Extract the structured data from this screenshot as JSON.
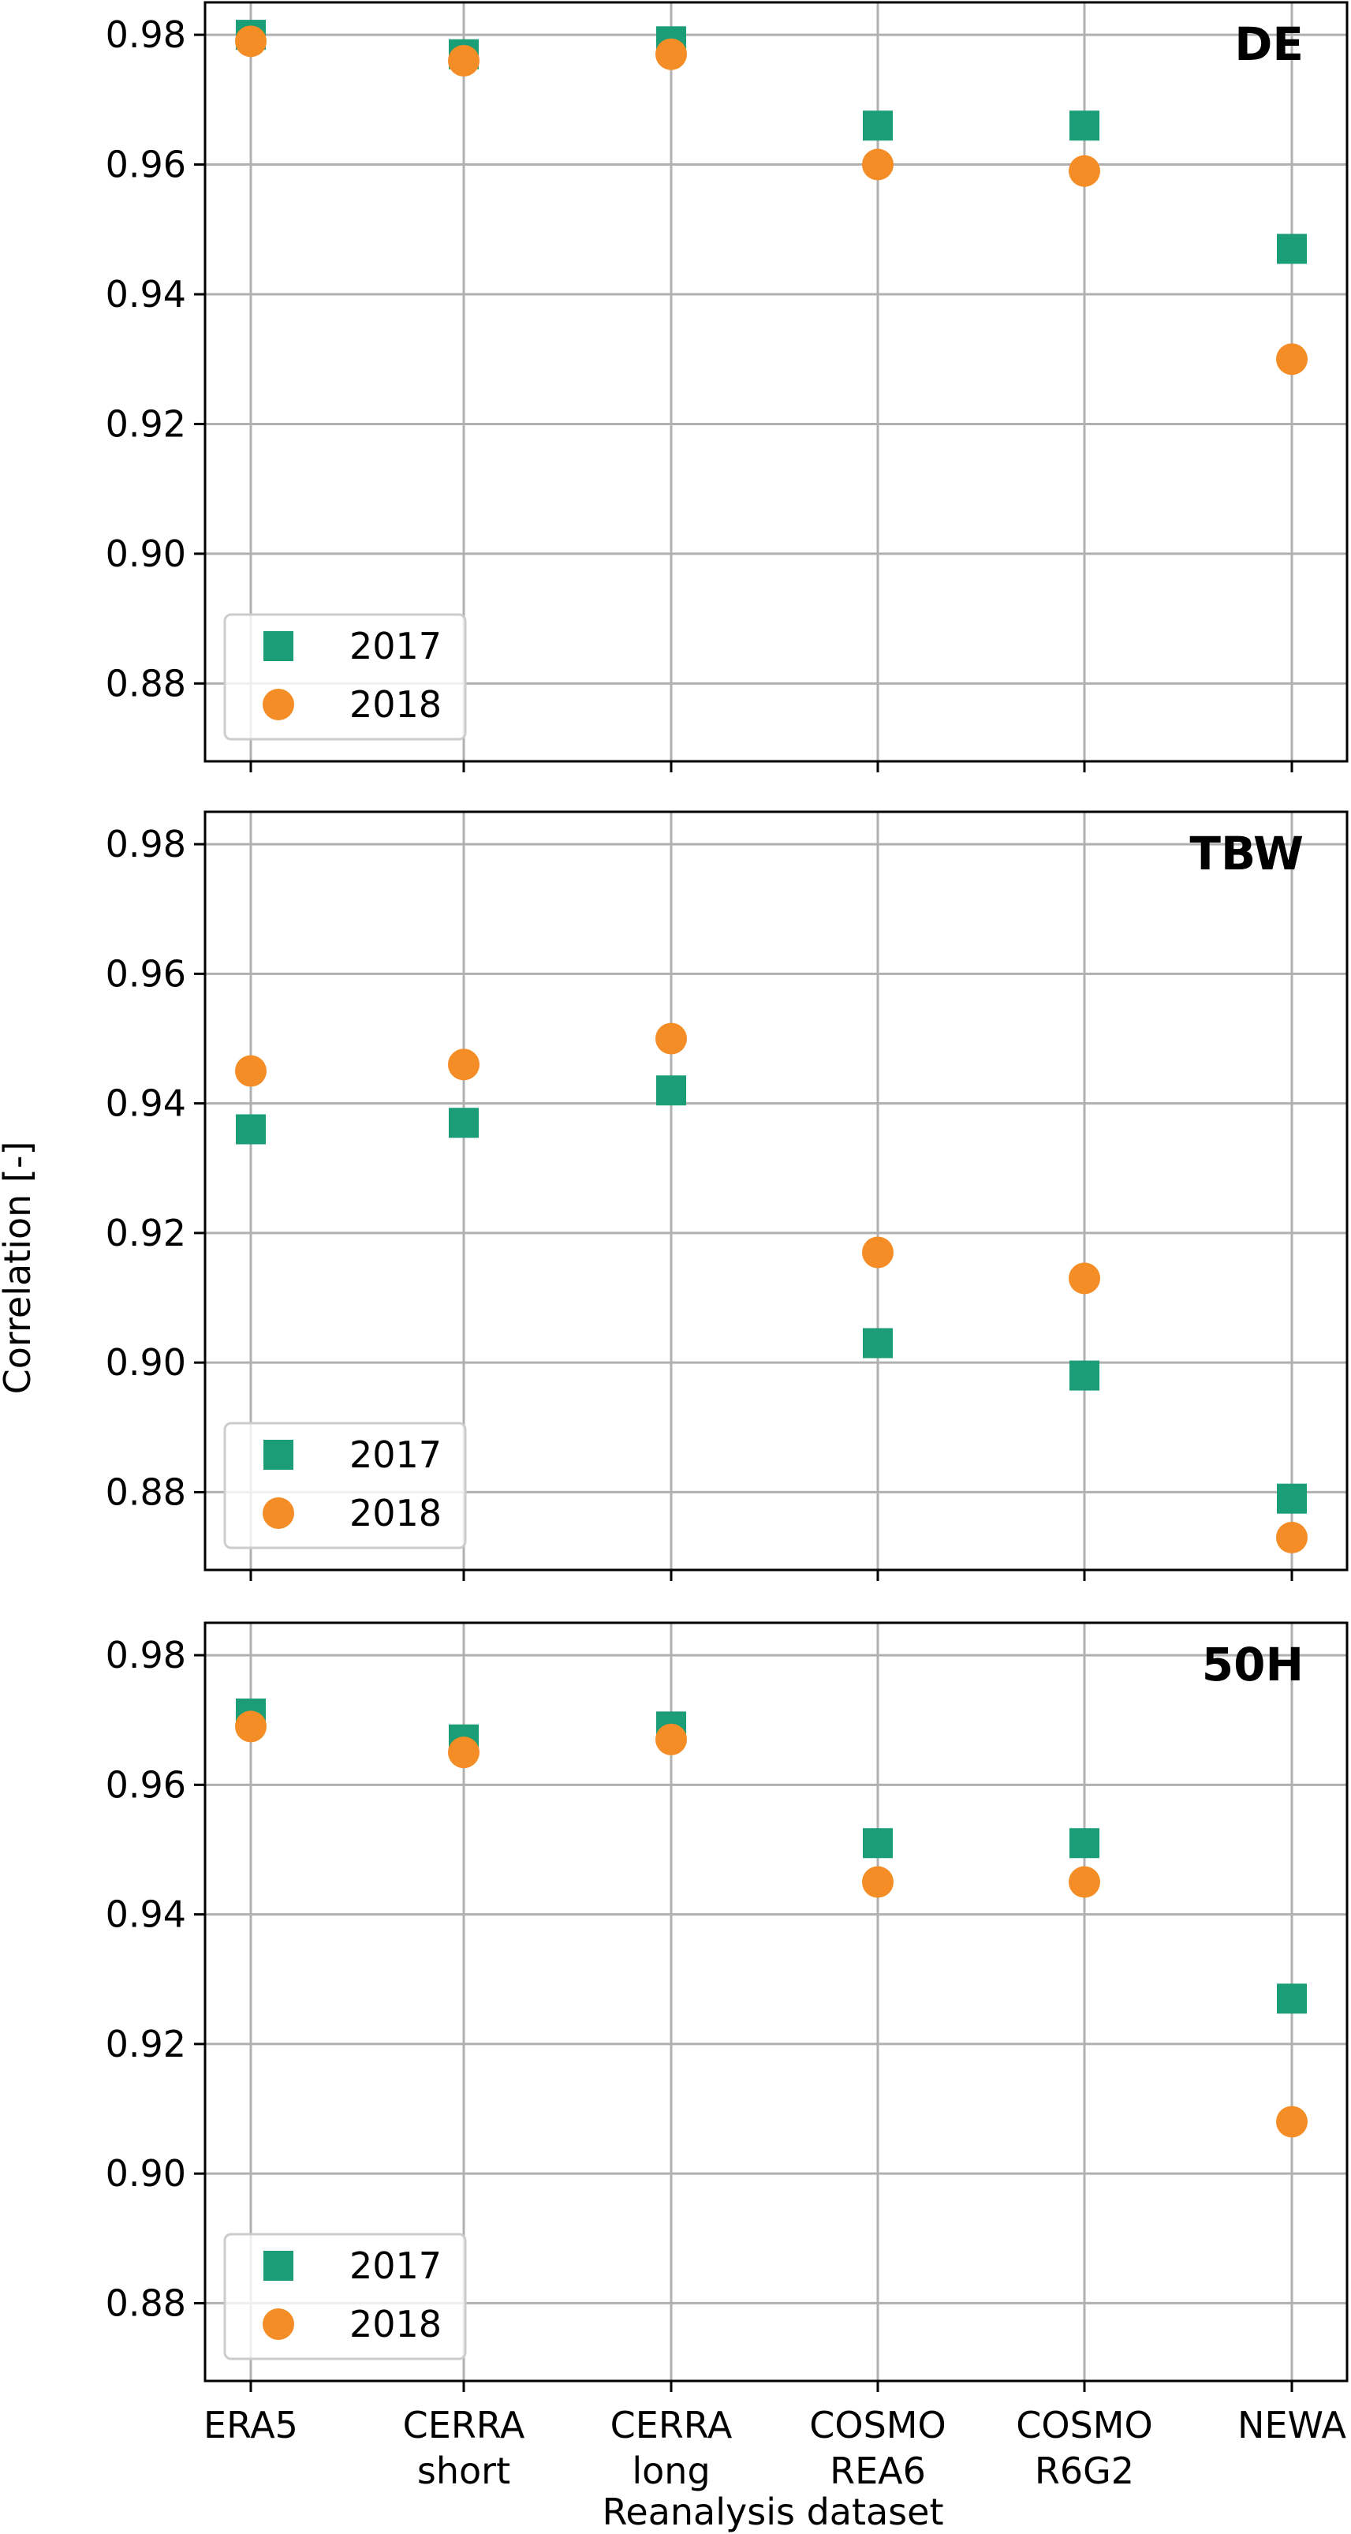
{
  "chart_data": {
    "type": "scatter",
    "categories": [
      "ERA5",
      "CERRA\nshort",
      "CERRA\nlong",
      "COSMO\nREA6",
      "COSMO\nR6G2",
      "NEWA"
    ],
    "xlabel": "Reanalysis dataset",
    "ylabel": "Correlation [-]",
    "ylim": [
      0.868,
      0.985
    ],
    "yticks": [
      "0.88",
      "0.90",
      "0.92",
      "0.94",
      "0.96",
      "0.98"
    ],
    "grid": true,
    "legend_position": "lower-left",
    "colors": {
      "2017": "#1b9e77",
      "2018": "#f58d26"
    },
    "markers": {
      "2017": "square",
      "2018": "circle"
    },
    "panels": [
      {
        "title": "DE",
        "series": [
          {
            "name": "2017",
            "values": [
              0.98,
              0.977,
              0.979,
              0.966,
              0.966,
              0.947
            ]
          },
          {
            "name": "2018",
            "values": [
              0.979,
              0.976,
              0.977,
              0.96,
              0.959,
              0.93
            ]
          }
        ]
      },
      {
        "title": "TBW",
        "series": [
          {
            "name": "2017",
            "values": [
              0.936,
              0.937,
              0.942,
              0.903,
              0.898,
              0.879
            ]
          },
          {
            "name": "2018",
            "values": [
              0.945,
              0.946,
              0.95,
              0.917,
              0.913,
              0.873
            ]
          }
        ]
      },
      {
        "title": "50H",
        "series": [
          {
            "name": "2017",
            "values": [
              0.971,
              0.967,
              0.969,
              0.951,
              0.951,
              0.927
            ]
          },
          {
            "name": "2018",
            "values": [
              0.969,
              0.965,
              0.967,
              0.945,
              0.945,
              0.908
            ]
          }
        ]
      }
    ]
  }
}
